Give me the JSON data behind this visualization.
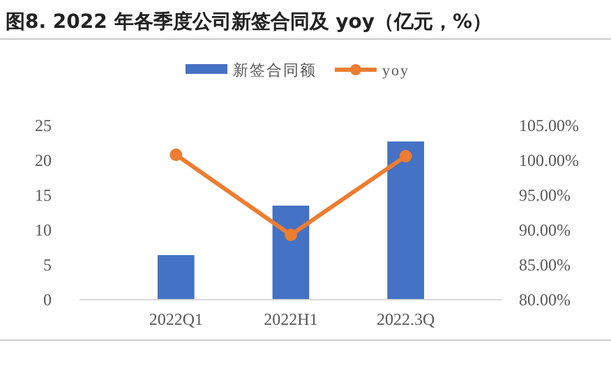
{
  "chart_data": {
    "type": "bar",
    "title": "图8. 2022 年各季度公司新签合同及 yoy（亿元，%）",
    "categories": [
      "2022Q1",
      "2022H1",
      "2022.3Q"
    ],
    "series": [
      {
        "name": "新签合同额",
        "color": "#4472c4",
        "values": [
          6.4,
          13.5,
          22.7
        ]
      },
      {
        "name": "yoy",
        "type": "line",
        "axis": "y2",
        "color": "#ed7d31",
        "marker": "circle",
        "values": [
          100.8,
          89.3,
          100.6
        ]
      }
    ],
    "ylim": [
      0,
      25
    ],
    "yticks": [
      0,
      5,
      10,
      15,
      20,
      25
    ],
    "y2lim": [
      80,
      105
    ],
    "y2ticks": [
      {
        "value": 80,
        "label": "80.00%"
      },
      {
        "value": 85,
        "label": "85.00%"
      },
      {
        "value": 90,
        "label": "90.00%"
      },
      {
        "value": 95,
        "label": "95.00%"
      },
      {
        "value": 100,
        "label": "100.00%"
      },
      {
        "value": 105,
        "label": "105.00%"
      }
    ],
    "legend": "top",
    "grid": false
  }
}
